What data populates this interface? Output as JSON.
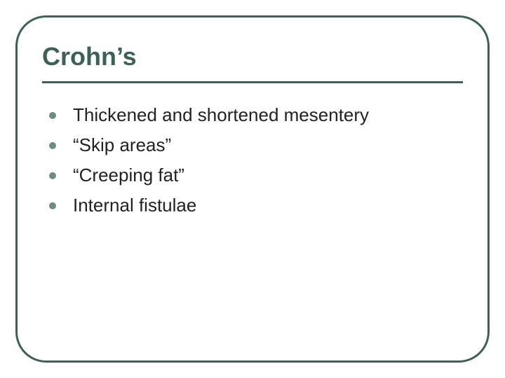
{
  "colors": {
    "frame_border": "#3b6159",
    "title_text": "#3b6159",
    "underline": "#3b6159",
    "bullet_dot": "#6b8e7f",
    "body_text": "#222222",
    "background": "#ffffff"
  },
  "title": "Crohn’s",
  "bullets": [
    "Thickened and shortened mesentery",
    "“Skip areas”",
    "“Creeping fat”",
    "Internal fistulae"
  ],
  "title_fontsize": 36,
  "body_fontsize": 26
}
